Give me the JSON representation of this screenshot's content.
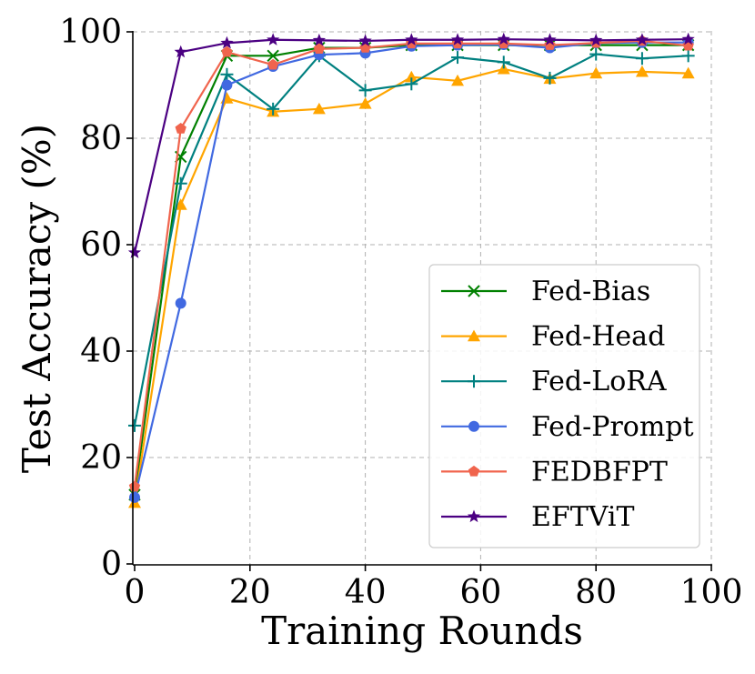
{
  "chart_data": {
    "type": "line",
    "title": "",
    "xlabel": "Training Rounds",
    "ylabel": "Test Accuracy (%)",
    "xlim": [
      0,
      100
    ],
    "ylim": [
      0,
      100
    ],
    "xticks": [
      0,
      20,
      40,
      60,
      80,
      100
    ],
    "yticks": [
      0,
      20,
      40,
      60,
      80,
      100
    ],
    "grid": true,
    "legend_position": "lower-right",
    "x": [
      0,
      8,
      16,
      24,
      32,
      40,
      48,
      56,
      64,
      72,
      80,
      88,
      96
    ],
    "series": [
      {
        "name": "Fed-Bias",
        "color": "#008000",
        "marker": "x",
        "values": [
          13,
          76.5,
          95.5,
          95.5,
          97,
          97,
          97.5,
          97.5,
          97.5,
          97.5,
          97.5,
          97.5,
          97.5
        ]
      },
      {
        "name": "Fed-Head",
        "color": "#FFA500",
        "marker": "triangle",
        "values": [
          11.5,
          67.5,
          87.5,
          85,
          85.5,
          86.5,
          91.5,
          90.8,
          93,
          91.2,
          92.2,
          92.5,
          92.2
        ]
      },
      {
        "name": "Fed-LoRA",
        "color": "#008080",
        "marker": "plus",
        "values": [
          26,
          71.5,
          92,
          85.5,
          95.5,
          89,
          90.2,
          95.2,
          94.3,
          91.3,
          95.8,
          95,
          95.5
        ]
      },
      {
        "name": "Fed-Prompt",
        "color": "#4169E1",
        "marker": "circle",
        "values": [
          12.5,
          49,
          90,
          93.5,
          95.7,
          96,
          97.3,
          97.5,
          97.6,
          97,
          97.9,
          98,
          98
        ]
      },
      {
        "name": "FEDBFPT",
        "color": "#F0644D",
        "marker": "pentagon",
        "values": [
          14.5,
          81.8,
          96.2,
          93.8,
          96.8,
          97,
          97.8,
          97.8,
          97.8,
          97.5,
          97.9,
          98.3,
          97.4
        ]
      },
      {
        "name": "EFTViT",
        "color": "#4B0082",
        "marker": "star",
        "values": [
          58.5,
          96.2,
          97.9,
          98.5,
          98.4,
          98.3,
          98.5,
          98.5,
          98.6,
          98.5,
          98.4,
          98.5,
          98.6
        ]
      }
    ]
  }
}
